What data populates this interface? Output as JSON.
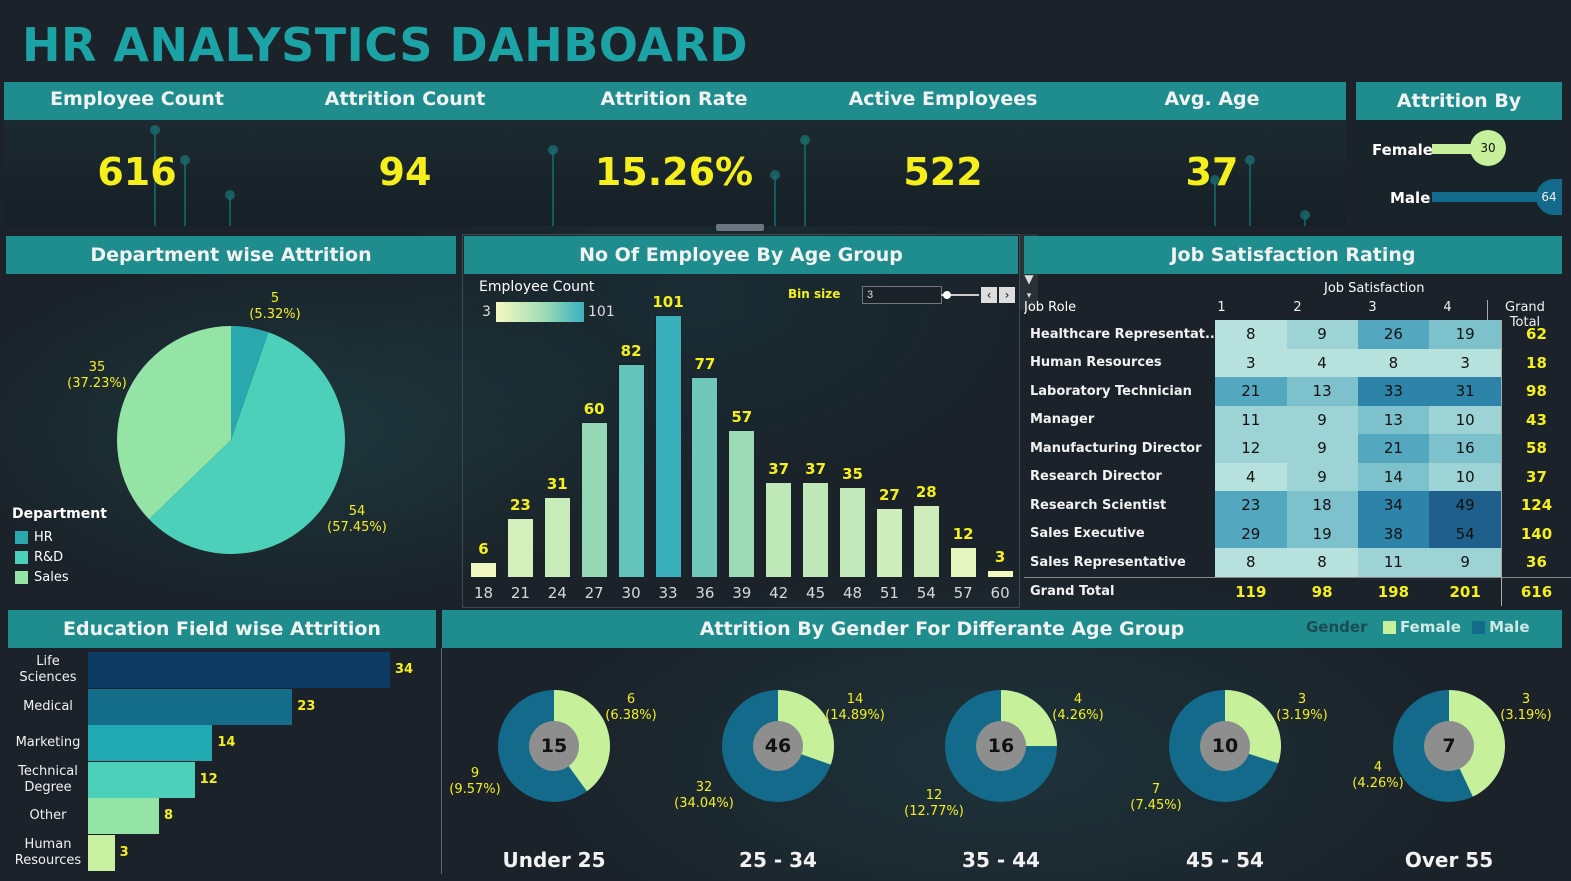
{
  "title": "HR ANALYSTICS DAHBOARD",
  "kpis": [
    {
      "label": "Employee Count",
      "value": "616"
    },
    {
      "label": "Attrition Count",
      "value": "94"
    },
    {
      "label": "Attrition Rate",
      "value": "15.26%"
    },
    {
      "label": "Active Employees",
      "value": "522"
    },
    {
      "label": "Avg. Age",
      "value": "37"
    }
  ],
  "attrition_by_gender": {
    "title": "Attrition By Gender",
    "female_label": "Female",
    "female_value": "30",
    "male_label": "Male",
    "male_value": "64"
  },
  "department_attrition": {
    "title": "Department wise Attrition",
    "legend_title": "Department",
    "legend": [
      "HR",
      "R&D",
      "Sales"
    ],
    "colors": {
      "HR": "#2aa8ad",
      "R&D": "#4dd0b9",
      "Sales": "#94e4a6"
    },
    "labels": {
      "hr": {
        "value": "5",
        "pct": "(5.32%)"
      },
      "rd": {
        "value": "54",
        "pct": "(57.45%)"
      },
      "sales": {
        "value": "35",
        "pct": "(37.23%)"
      }
    }
  },
  "age_group": {
    "title": "No Of Employee By Age Group",
    "legend_title": "Employee Count",
    "legend_min": "3",
    "legend_max": "101",
    "bin_size_label": "Bin size",
    "bin_size_value": "3"
  },
  "job_satisfaction": {
    "title": "Job Satisfaction Rating",
    "column_group": "Job Satisfaction",
    "row_header": "Job Role",
    "columns": [
      "1",
      "2",
      "3",
      "4",
      "Grand Total"
    ],
    "rows": [
      {
        "role": "Healthcare Representat..",
        "values": [
          "8",
          "9",
          "26",
          "19"
        ],
        "total": "62"
      },
      {
        "role": "Human Resources",
        "values": [
          "3",
          "4",
          "8",
          "3"
        ],
        "total": "18"
      },
      {
        "role": "Laboratory Technician",
        "values": [
          "21",
          "13",
          "33",
          "31"
        ],
        "total": "98"
      },
      {
        "role": "Manager",
        "values": [
          "11",
          "9",
          "13",
          "10"
        ],
        "total": "43"
      },
      {
        "role": "Manufacturing Director",
        "values": [
          "12",
          "9",
          "21",
          "16"
        ],
        "total": "58"
      },
      {
        "role": "Research Director",
        "values": [
          "4",
          "9",
          "14",
          "10"
        ],
        "total": "37"
      },
      {
        "role": "Research Scientist",
        "values": [
          "23",
          "18",
          "34",
          "49"
        ],
        "total": "124"
      },
      {
        "role": "Sales Executive",
        "values": [
          "29",
          "19",
          "38",
          "54"
        ],
        "total": "140"
      },
      {
        "role": "Sales Representative",
        "values": [
          "8",
          "8",
          "11",
          "9"
        ],
        "total": "36"
      }
    ],
    "grand_total": {
      "label": "Grand Total",
      "values": [
        "119",
        "98",
        "198",
        "201"
      ],
      "total": "616"
    }
  },
  "education_field": {
    "title": "Education Field wise Attrition",
    "colors": [
      "#0d3a63",
      "#136c8a",
      "#20a9b0",
      "#4dd0b9",
      "#94e4a6",
      "#c9f0a0"
    ]
  },
  "gender_age": {
    "title": "Attrition By Gender For Differante Age Group",
    "legend_title": "Gender",
    "legend": [
      "Female",
      "Male"
    ],
    "colors": {
      "Female": "#c7f09a",
      "Male": "#136a8a"
    },
    "groups": [
      {
        "label": "Under 25",
        "total": "15",
        "female": "6",
        "female_pct": "(6.38%)",
        "male": "9",
        "male_pct": "(9.57%)",
        "female_share": 0.4
      },
      {
        "label": "25 - 34",
        "total": "46",
        "female": "14",
        "female_pct": "(14.89%)",
        "male": "32",
        "male_pct": "(34.04%)",
        "female_share": 0.304
      },
      {
        "label": "35 - 44",
        "total": "16",
        "female": "4",
        "female_pct": "(4.26%)",
        "male": "12",
        "male_pct": "(12.77%)",
        "female_share": 0.25
      },
      {
        "label": "45 - 54",
        "total": "10",
        "female": "3",
        "female_pct": "(3.19%)",
        "male": "7",
        "male_pct": "(7.45%)",
        "female_share": 0.3
      },
      {
        "label": "Over 55",
        "total": "7",
        "female": "3",
        "female_pct": "(3.19%)",
        "male": "4",
        "male_pct": "(4.26%)",
        "female_share": 0.43
      }
    ]
  },
  "chart_data": [
    {
      "type": "pie",
      "title": "Department wise Attrition",
      "categories": [
        "HR",
        "R&D",
        "Sales"
      ],
      "values": [
        5,
        54,
        35
      ],
      "percent": [
        5.32,
        57.45,
        37.23
      ]
    },
    {
      "type": "bar",
      "title": "No Of Employee By Age Group",
      "categories": [
        "18",
        "21",
        "24",
        "27",
        "30",
        "33",
        "36",
        "39",
        "42",
        "45",
        "48",
        "51",
        "54",
        "57",
        "60"
      ],
      "values": [
        6,
        23,
        31,
        60,
        82,
        101,
        77,
        57,
        37,
        37,
        35,
        27,
        28,
        12,
        3
      ]
    },
    {
      "type": "bar",
      "title": "Education Field wise Attrition",
      "categories": [
        "Life Sciences",
        "Medical",
        "Marketing",
        "Technical Degree",
        "Other",
        "Human Resources"
      ],
      "values": [
        34,
        23,
        14,
        12,
        8,
        3
      ]
    },
    {
      "type": "pie",
      "title": "Attrition By Gender",
      "categories": [
        "Female",
        "Male"
      ],
      "values": [
        30,
        64
      ]
    }
  ]
}
